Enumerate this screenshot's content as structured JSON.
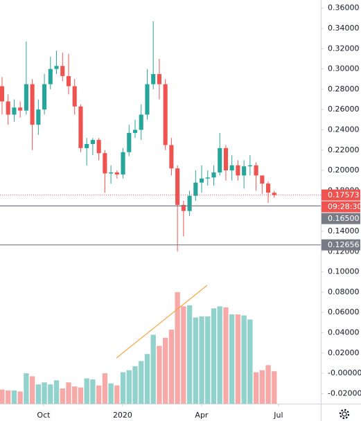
{
  "chart_data": {
    "type": "candlestick",
    "open": [
      0.283,
      0.268,
      0.255,
      0.262,
      0.259,
      0.285,
      0.245,
      0.26,
      0.285,
      0.3,
      0.303,
      0.293,
      0.283,
      0.263,
      0.222,
      0.226,
      0.23,
      0.217,
      0.197,
      0.198,
      0.196,
      0.218,
      0.237,
      0.24,
      0.255,
      0.285,
      0.295,
      0.285,
      0.225,
      0.202,
      0.166,
      0.16,
      0.175,
      0.188,
      0.192,
      0.193,
      0.198,
      0.222,
      0.2,
      0.205,
      0.195,
      0.204,
      0.205,
      0.195,
      0.187,
      0.178
    ],
    "high": [
      0.292,
      0.275,
      0.27,
      0.268,
      0.327,
      0.29,
      0.27,
      0.295,
      0.312,
      0.318,
      0.316,
      0.315,
      0.29,
      0.265,
      0.232,
      0.232,
      0.232,
      0.22,
      0.205,
      0.2,
      0.222,
      0.245,
      0.25,
      0.265,
      0.3,
      0.347,
      0.31,
      0.29,
      0.232,
      0.205,
      0.17,
      0.18,
      0.2,
      0.205,
      0.2,
      0.205,
      0.237,
      0.225,
      0.215,
      0.21,
      0.21,
      0.215,
      0.208,
      0.195,
      0.189,
      0.18
    ],
    "low": [
      0.255,
      0.245,
      0.248,
      0.252,
      0.255,
      0.22,
      0.235,
      0.255,
      0.28,
      0.295,
      0.288,
      0.275,
      0.255,
      0.218,
      0.205,
      0.215,
      0.21,
      0.178,
      0.187,
      0.192,
      0.192,
      0.214,
      0.232,
      0.23,
      0.25,
      0.28,
      0.27,
      0.22,
      0.195,
      0.12,
      0.135,
      0.155,
      0.17,
      0.178,
      0.185,
      0.185,
      0.195,
      0.19,
      0.19,
      0.19,
      0.182,
      0.195,
      0.18,
      0.177,
      0.168,
      0.173
    ],
    "close": [
      0.268,
      0.255,
      0.262,
      0.259,
      0.285,
      0.245,
      0.26,
      0.285,
      0.3,
      0.303,
      0.293,
      0.283,
      0.263,
      0.222,
      0.226,
      0.23,
      0.217,
      0.197,
      0.198,
      0.196,
      0.218,
      0.237,
      0.24,
      0.255,
      0.285,
      0.295,
      0.285,
      0.225,
      0.202,
      0.166,
      0.16,
      0.175,
      0.188,
      0.192,
      0.193,
      0.198,
      0.222,
      0.2,
      0.205,
      0.195,
      0.204,
      0.205,
      0.195,
      0.187,
      0.178,
      0.17573
    ],
    "volume": [
      -0.016,
      -0.017,
      -0.017,
      -0.018,
      0.0,
      -0.003,
      -0.011,
      -0.009,
      -0.011,
      -0.007,
      -0.015,
      -0.009,
      -0.013,
      -0.014,
      -0.005,
      -0.006,
      -0.012,
      0.0,
      -0.01,
      -0.012,
      0.001,
      0.003,
      0.007,
      0.012,
      0.019,
      0.038,
      0.027,
      0.035,
      0.043,
      0.08,
      0.066,
      0.067,
      0.055,
      0.056,
      0.056,
      0.064,
      0.066,
      0.065,
      0.058,
      0.058,
      0.057,
      0.053,
      0.001,
      0.003,
      0.008,
      0.002
    ],
    "up_color": "#26a69a",
    "down_color": "#ef5350",
    "xlim": [
      -0.34,
      52.7
    ],
    "xticks": [
      {
        "value": 6.87,
        "label": "Oct"
      },
      {
        "value": 19.93,
        "label": "2020"
      },
      {
        "value": 32.99,
        "label": "Apr"
      },
      {
        "value": 45.7,
        "label": "Jul"
      }
    ],
    "ylim": [
      -0.03,
      0.368
    ],
    "yticks": [
      {
        "value": 0.36,
        "label": "0.36000"
      },
      {
        "value": 0.34,
        "label": "0.34000"
      },
      {
        "value": 0.32,
        "label": "0.32000"
      },
      {
        "value": 0.3,
        "label": "0.30000"
      },
      {
        "value": 0.28,
        "label": "0.28000"
      },
      {
        "value": 0.26,
        "label": "0.26000"
      },
      {
        "value": 0.24,
        "label": "0.24000"
      },
      {
        "value": 0.22,
        "label": "0.22000"
      },
      {
        "value": 0.2,
        "label": "0.20000"
      },
      {
        "value": 0.18,
        "label": "0.18000"
      },
      {
        "value": 0.14,
        "label": "0.14000"
      },
      {
        "value": 0.12,
        "label": "0.12000"
      },
      {
        "value": 0.1,
        "label": "0.10000"
      },
      {
        "value": 0.08,
        "label": "0.08000"
      },
      {
        "value": 0.06,
        "label": "0.06000"
      },
      {
        "value": 0.04,
        "label": "0.04000"
      },
      {
        "value": 0.02,
        "label": "0.02000"
      },
      {
        "value": 0,
        "label": "-0.00000"
      },
      {
        "value": -0.02,
        "label": "-0.02000"
      }
    ],
    "last_price": {
      "value": 0.17573,
      "label": "0.17573"
    },
    "countdown": "09:28:30",
    "hlines": [
      {
        "value": 0.165,
        "label": "0.16500"
      },
      {
        "value": 0.12656,
        "label": "0.12656"
      }
    ]
  }
}
